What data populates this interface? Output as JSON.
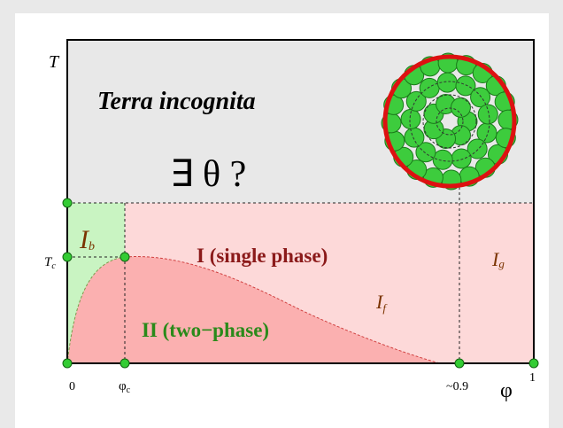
{
  "axes": {
    "y_label": "T",
    "tc": {
      "main": "T",
      "sub": "c"
    },
    "x_origin": "0",
    "phi_c": {
      "main": "φ",
      "sub": "c"
    },
    "x_glass": "~0.9",
    "x_end": "1",
    "x_label": "φ"
  },
  "regions": {
    "terra": "Terra incognita",
    "question": "∃ θ ?",
    "ib": {
      "main": "I",
      "sub": "b"
    },
    "single": "I (single phase)",
    "ig": {
      "main": "I",
      "sub": "g"
    },
    "if": {
      "main": "I",
      "sub": "f"
    },
    "two": "II (two−phase)"
  }
}
